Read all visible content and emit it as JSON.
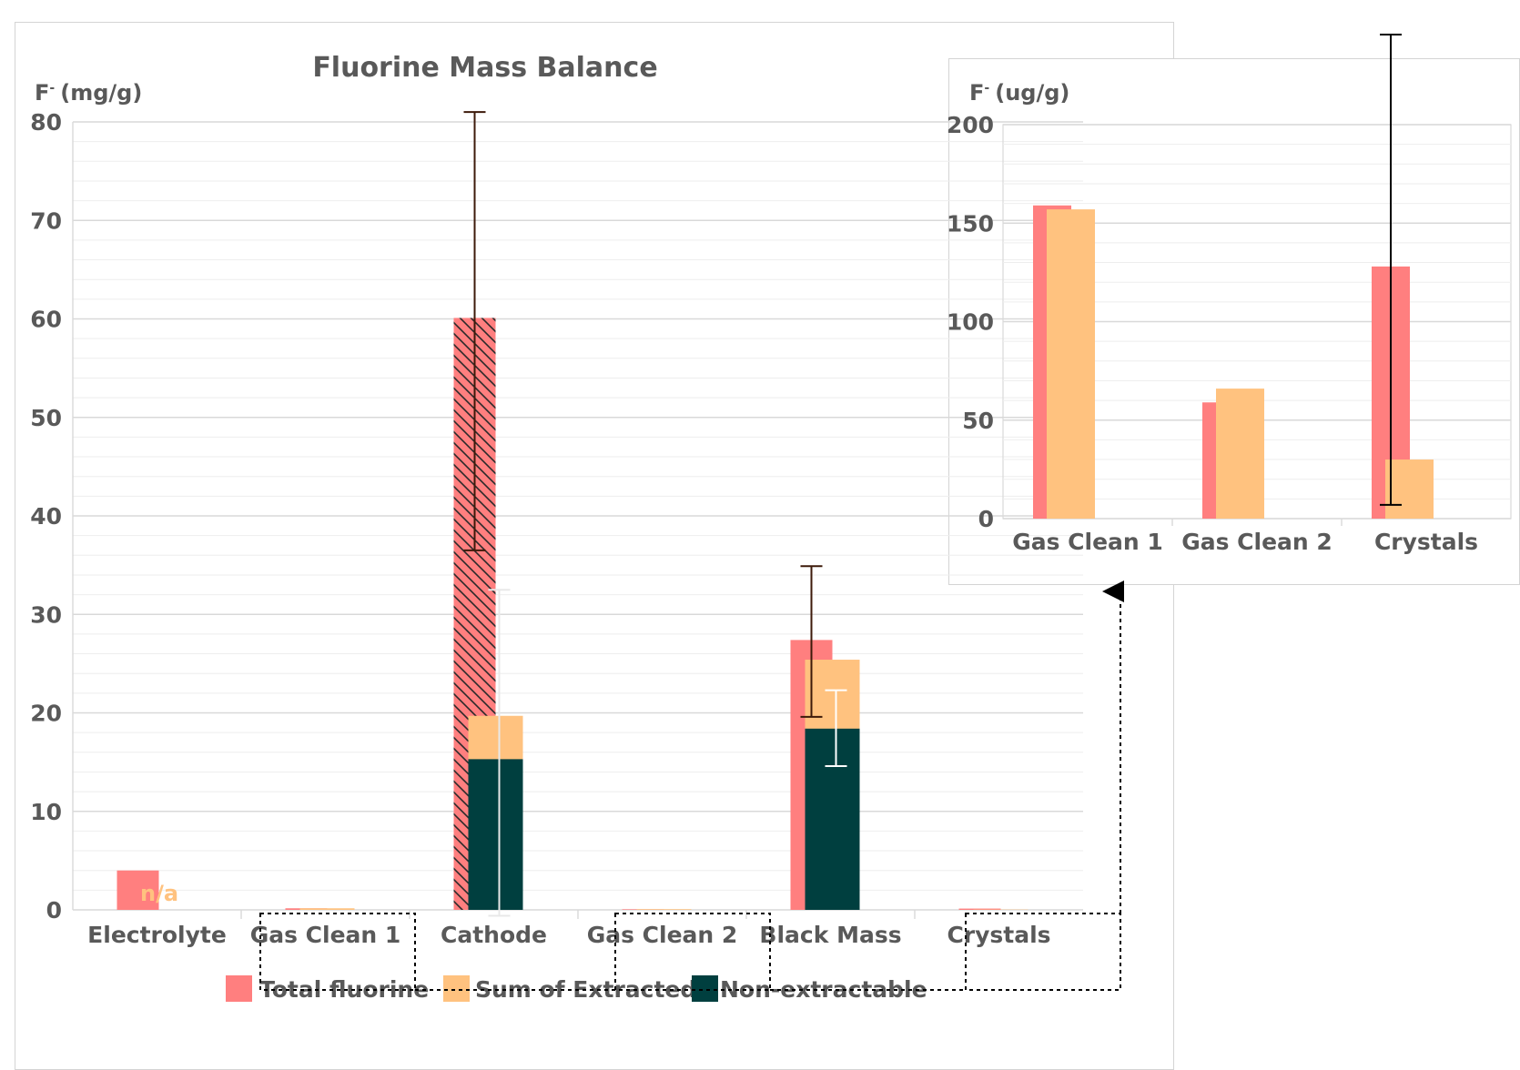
{
  "colors": {
    "total": "#ff7f7f",
    "extracted": "#ffc27f",
    "nonextract": "#003f3f",
    "text": "#595959",
    "grid": "#d9d9d9",
    "minorgrid": "#eeeeee",
    "errorbar_dark": "#3d1a0a",
    "errorbar_light": "#ffffff"
  },
  "chart_data": [
    {
      "type": "bar",
      "title": "Fluorine Mass Balance",
      "ylabel": "F- (mg/g)",
      "ylabel_base": "F",
      "ylabel_sup": "-",
      "ylabel_unit": "(mg/g)",
      "ylim": [
        0,
        80
      ],
      "yticks": [
        0,
        10,
        20,
        30,
        40,
        50,
        60,
        70,
        80
      ],
      "categories": [
        "Electrolyte",
        "Gas Clean 1",
        "Cathode",
        "Gas Clean 2",
        "Black Mass",
        "Crystals"
      ],
      "highlighted_categories": [
        "Gas Clean 1",
        "Gas Clean 2",
        "Crystals"
      ],
      "series": [
        {
          "name": "Total fluorine",
          "values": [
            4.0,
            0.16,
            60.1,
            0.06,
            27.4,
            0.13
          ],
          "error_low": [
            null,
            null,
            36.5,
            null,
            19.6,
            null
          ],
          "error_high": [
            null,
            null,
            81.0,
            null,
            34.9,
            null
          ],
          "hatched": [
            false,
            false,
            true,
            false,
            false,
            false
          ]
        },
        {
          "name": "Sum of Extracted",
          "values": [
            null,
            0.16,
            19.7,
            0.07,
            25.4,
            0.03
          ]
        },
        {
          "name": "Non-extractable",
          "values": [
            null,
            null,
            15.3,
            null,
            18.4,
            null
          ],
          "error_low": [
            null,
            null,
            -0.6,
            null,
            14.6,
            null
          ],
          "error_high": [
            null,
            null,
            32.5,
            null,
            22.3,
            null
          ]
        }
      ],
      "annotations": [
        {
          "category": "Electrolyte",
          "text": "n/a"
        }
      ],
      "legend": [
        "Total fluorine",
        "Sum of Extracted",
        "Non-extractable"
      ],
      "legend_position": "bottom"
    },
    {
      "type": "bar",
      "title": "",
      "ylabel": "F- (ug/g)",
      "ylabel_base": "F",
      "ylabel_sup": "-",
      "ylabel_unit": "(ug/g)",
      "ylim": [
        0,
        200
      ],
      "yticks": [
        0,
        50,
        100,
        150,
        200
      ],
      "categories": [
        "Gas Clean 1",
        "Gas Clean 2",
        "Crystals"
      ],
      "series": [
        {
          "name": "Total fluorine",
          "values": [
            159,
            59,
            128
          ],
          "error_low": [
            null,
            null,
            7
          ],
          "error_high": [
            null,
            null,
            245
          ]
        },
        {
          "name": "Sum of Extracted",
          "values": [
            157,
            66,
            30
          ]
        }
      ]
    }
  ]
}
